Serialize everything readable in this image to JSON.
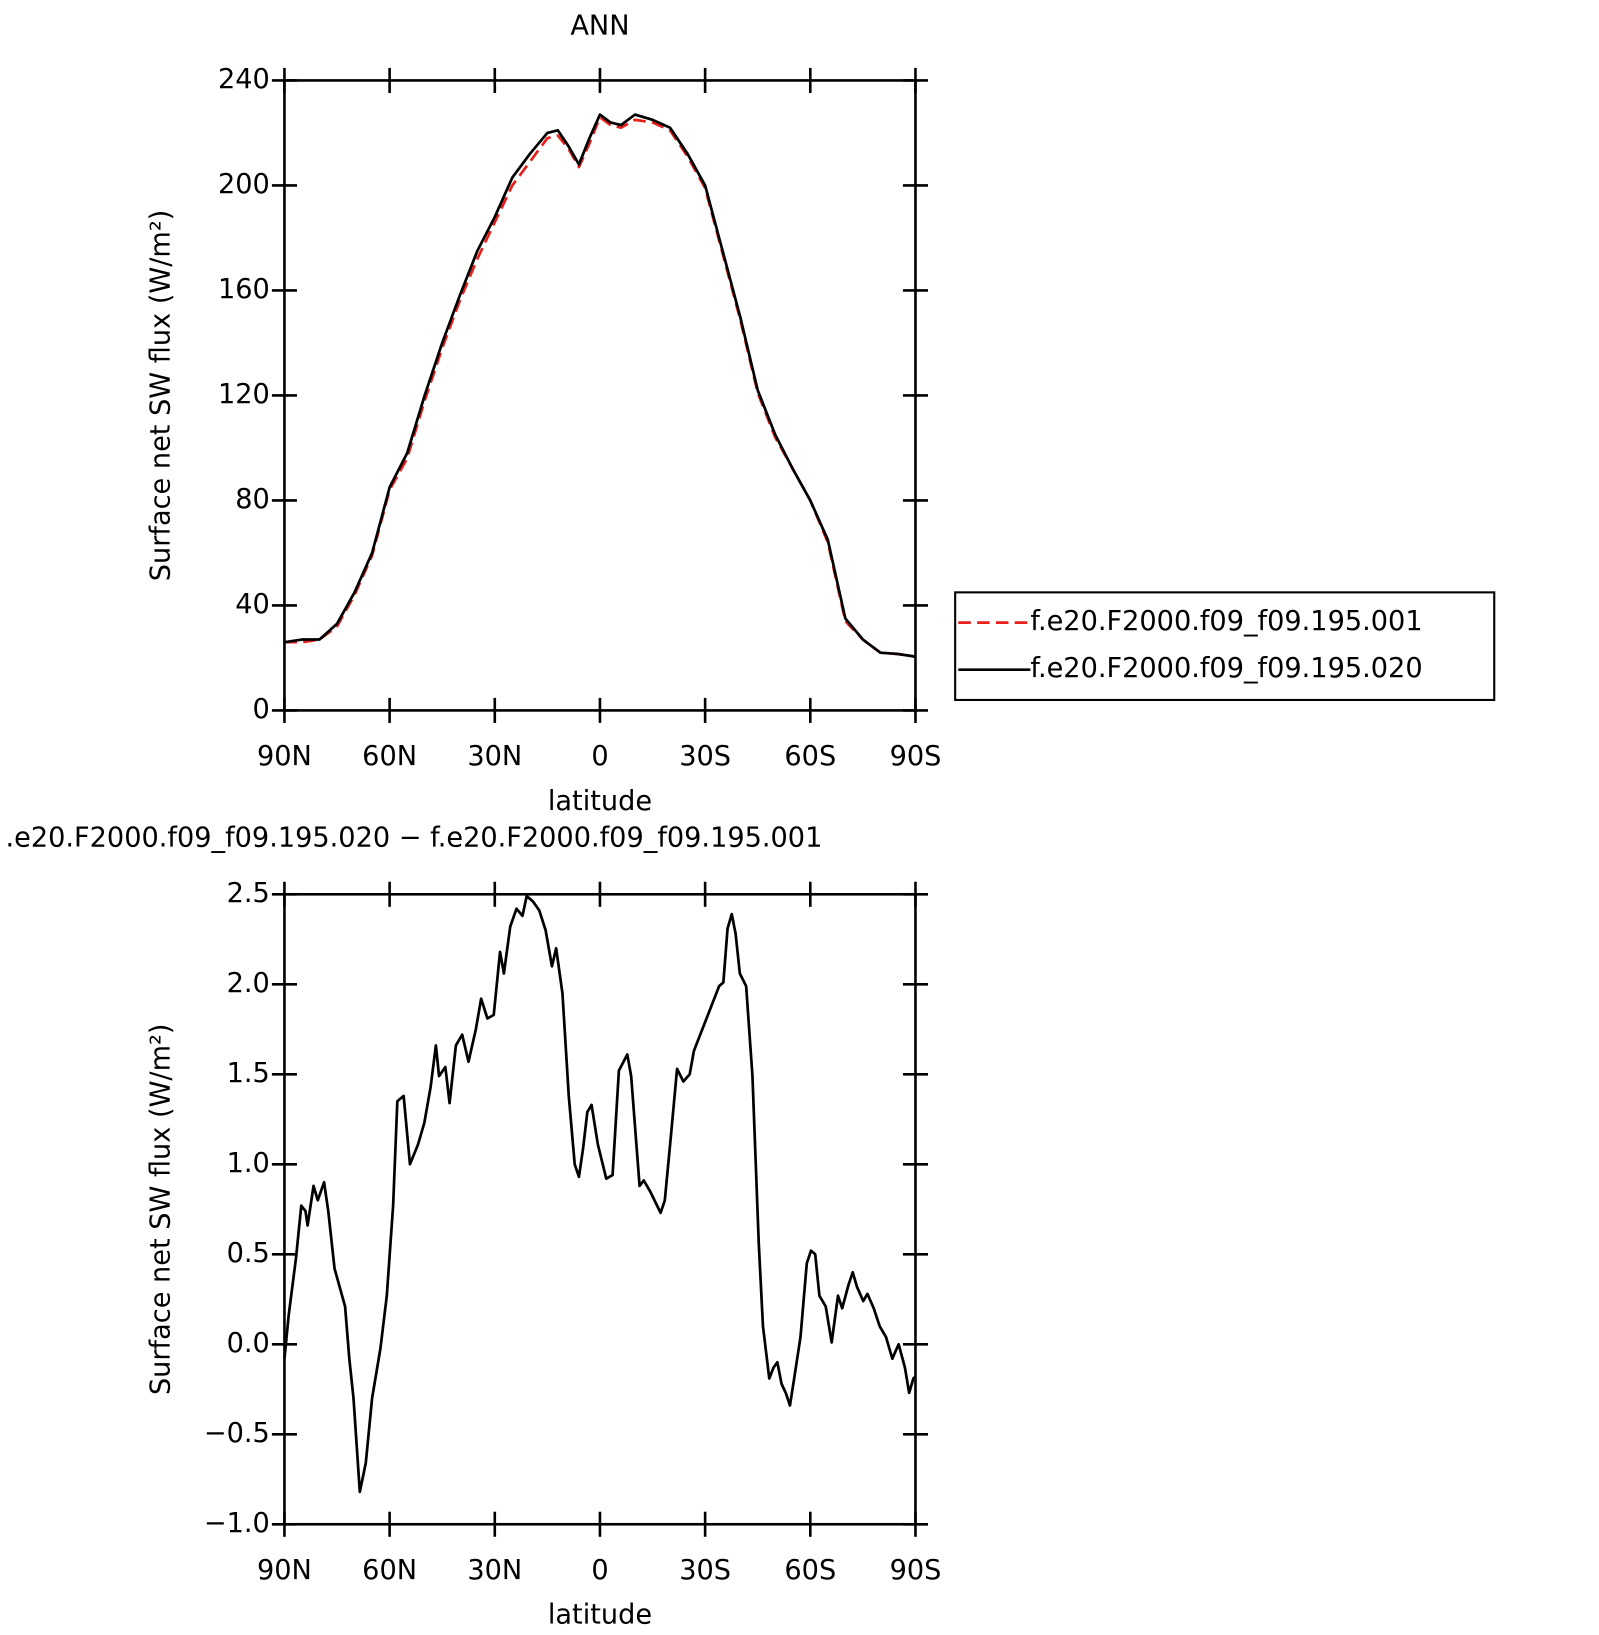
{
  "chart_data": [
    {
      "type": "line",
      "title": "ANN",
      "xlabel": "latitude",
      "ylabel": "Surface net SW flux (W/m²)",
      "x": [
        90,
        85,
        80,
        75,
        70,
        65,
        60,
        55,
        50,
        45,
        40,
        35,
        30,
        25,
        20,
        15,
        12,
        9,
        6,
        3,
        0,
        -3,
        -6,
        -10,
        -15,
        -20,
        -25,
        -30,
        -35,
        -40,
        -45,
        -50,
        -55,
        -60,
        -65,
        -70,
        -75,
        -80,
        -85,
        -90
      ],
      "series": [
        {
          "name": "f.e20.F2000.f09_f09.195.001",
          "color": "#e8201c",
          "dash": "dashed",
          "values": [
            26,
            26,
            27,
            32,
            44,
            59,
            84,
            96,
            118,
            138,
            156,
            172,
            186,
            200,
            209,
            218,
            219,
            214,
            207,
            216,
            226,
            223,
            222,
            225,
            224,
            221,
            211,
            199,
            174,
            149,
            121,
            104,
            92,
            80,
            64,
            34,
            27,
            22,
            21.5,
            20.5
          ]
        },
        {
          "name": "f.e20.F2000.f09_f09.195.020",
          "color": "#000000",
          "dash": "solid",
          "values": [
            26,
            27,
            27,
            33,
            45,
            60,
            85,
            98,
            120,
            140,
            158,
            175,
            188,
            203,
            212,
            220,
            221,
            215,
            208,
            218,
            227,
            224,
            223,
            227,
            225,
            222,
            212,
            200,
            175,
            150,
            122,
            105,
            92,
            80,
            65,
            35,
            27,
            22,
            21.5,
            20.5
          ]
        }
      ],
      "xlim": [
        90,
        -90
      ],
      "xticks": [
        {
          "value": 90,
          "label": "90N"
        },
        {
          "value": 60,
          "label": "60N"
        },
        {
          "value": 30,
          "label": "30N"
        },
        0,
        {
          "value": -30,
          "label": "30S"
        },
        {
          "value": -60,
          "label": "60S"
        },
        {
          "value": -90,
          "label": "90S"
        }
      ],
      "ylim": [
        0,
        240
      ],
      "yticks": [
        0,
        40,
        80,
        120,
        160,
        200,
        240
      ],
      "legend": "right"
    },
    {
      "type": "line",
      "title": ".e20.F2000.f09_f09.195.020 − f.e20.F2000.f09_f09.195.001",
      "xlabel": "latitude",
      "ylabel": "Surface net SW flux (W/m²)",
      "x": [
        90.0,
        88.8,
        86.7,
        85.2,
        84.0,
        83.4,
        81.7,
        80.5,
        78.7,
        77.5,
        75.7,
        72.7,
        71.5,
        70.3,
        68.5,
        66.8,
        65.0,
        62.6,
        60.8,
        59.0,
        57.8,
        56.0,
        54.2,
        51.9,
        50.1,
        48.3,
        46.8,
        45.9,
        44.1,
        42.9,
        41.1,
        39.3,
        37.5,
        35.4,
        33.9,
        32.1,
        30.3,
        28.5,
        27.4,
        25.6,
        23.8,
        22.1,
        20.9,
        19.1,
        17.3,
        15.5,
        13.7,
        12.5,
        10.7,
        8.9,
        7.2,
        6.0,
        4.8,
        3.6,
        2.4,
        0.6,
        -1.8,
        -3.6,
        -5.4,
        -7.8,
        -8.9,
        -11.3,
        -12.5,
        -14.3,
        -17.3,
        -18.5,
        -20.3,
        -22.0,
        -23.8,
        -25.6,
        -26.8,
        -28.6,
        -30.4,
        -32.2,
        -34.0,
        -35.2,
        -36.4,
        -37.6,
        -38.7,
        -39.9,
        -41.7,
        -43.5,
        -45.3,
        -46.5,
        -48.3,
        -49.5,
        -50.6,
        -51.8,
        -53.0,
        -54.2,
        -55.4,
        -57.2,
        -59.0,
        -60.2,
        -61.4,
        -62.6,
        -64.4,
        -66.1,
        -67.9,
        -69.1,
        -70.9,
        -72.1,
        -73.3,
        -75.1,
        -76.3,
        -78.1,
        -79.8,
        -81.6,
        -83.4,
        -85.2,
        -87.0,
        -88.2,
        -89.4,
        -90.0
      ],
      "color": "#000000",
      "values": [
        -0.08,
        0.16,
        0.48,
        0.77,
        0.74,
        0.66,
        0.88,
        0.8,
        0.9,
        0.74,
        0.42,
        0.21,
        -0.08,
        -0.3,
        -0.82,
        -0.66,
        -0.3,
        -0.02,
        0.27,
        0.77,
        1.35,
        1.38,
        1.0,
        1.11,
        1.23,
        1.43,
        1.66,
        1.49,
        1.54,
        1.34,
        1.66,
        1.72,
        1.57,
        1.75,
        1.92,
        1.81,
        1.83,
        2.18,
        2.06,
        2.32,
        2.42,
        2.38,
        2.49,
        2.46,
        2.41,
        2.3,
        2.1,
        2.2,
        1.95,
        1.38,
        1.0,
        0.93,
        1.09,
        1.29,
        1.33,
        1.11,
        0.92,
        0.94,
        1.52,
        1.61,
        1.49,
        0.88,
        0.91,
        0.85,
        0.73,
        0.8,
        1.17,
        1.53,
        1.46,
        1.5,
        1.63,
        1.72,
        1.81,
        1.9,
        1.99,
        2.01,
        2.31,
        2.39,
        2.28,
        2.06,
        1.99,
        1.49,
        0.56,
        0.1,
        -0.19,
        -0.13,
        -0.1,
        -0.22,
        -0.27,
        -0.34,
        -0.19,
        0.04,
        0.45,
        0.52,
        0.5,
        0.27,
        0.21,
        0.01,
        0.27,
        0.2,
        0.33,
        0.4,
        0.32,
        0.24,
        0.28,
        0.2,
        0.1,
        0.04,
        -0.08,
        0,
        -0.13,
        -0.27,
        -0.19,
        -0.18
      ],
      "xlim": [
        90,
        -90
      ],
      "xticks": [
        {
          "value": 90,
          "label": "90N"
        },
        {
          "value": 60,
          "label": "60N"
        },
        {
          "value": 30,
          "label": "30N"
        },
        0,
        {
          "value": -30,
          "label": "30S"
        },
        {
          "value": -60,
          "label": "60S"
        },
        {
          "value": -90,
          "label": "90S"
        }
      ],
      "ylim": [
        -1,
        2.5
      ],
      "yticks": [
        {
          "value": -1,
          "label": "−1.0"
        },
        {
          "value": -0.5,
          "label": "−0.5"
        },
        {
          "value": 0,
          "label": "0.0"
        },
        0.5,
        {
          "value": 1,
          "label": "1.0"
        },
        1.5,
        {
          "value": 2,
          "label": "2.0"
        },
        2.5
      ]
    }
  ]
}
